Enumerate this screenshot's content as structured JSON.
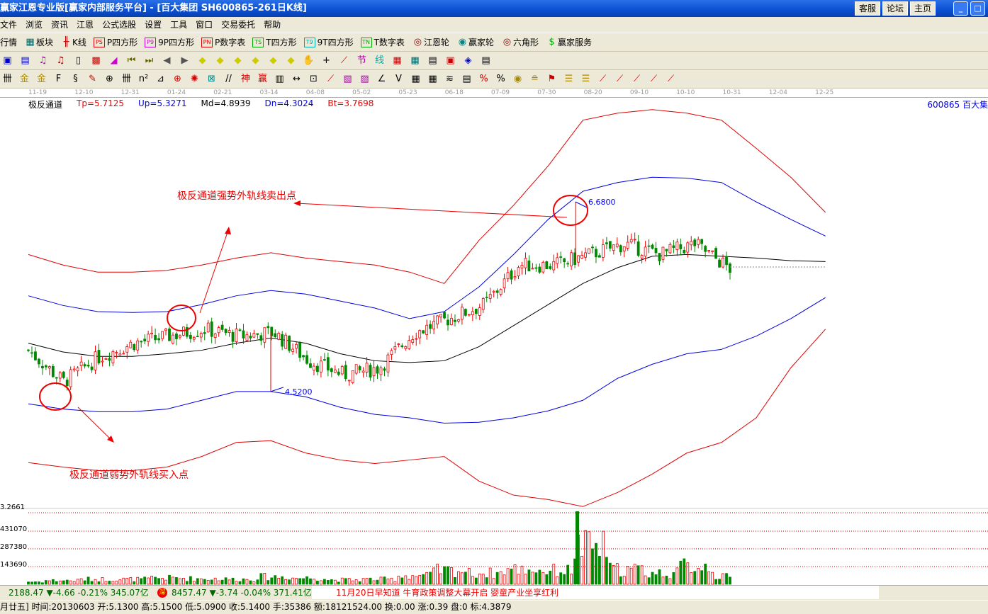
{
  "window": {
    "title": "赢家江恩专业版[赢家内部服务平台] - [百大集团   SH600865-261日K线]",
    "buttons": [
      "客服",
      "论坛",
      "主页"
    ]
  },
  "menu": [
    "文件",
    "浏览",
    "资讯",
    "江恩",
    "公式选股",
    "设置",
    "工具",
    "窗口",
    "交易委托",
    "帮助"
  ],
  "toolbar": [
    {
      "icon": "PS",
      "label": "P四方形",
      "color": "#d00"
    },
    {
      "icon": "P9",
      "label": "9P四方形",
      "color": "#c0c"
    },
    {
      "icon": "PN",
      "label": "P数字表",
      "color": "#d00"
    },
    {
      "icon": "TS",
      "label": "T四方形",
      "color": "#0a0"
    },
    {
      "icon": "T9",
      "label": "9T四方形",
      "color": "#0aa"
    },
    {
      "icon": "TN",
      "label": "T数字表",
      "color": "#0a0"
    }
  ],
  "toolbar_extra": {
    "quotes": "行情",
    "sectors": "板块",
    "kline": "K线",
    "gann_wheel": "江恩轮",
    "winner_wheel": "赢家轮",
    "hexagon": "六角形",
    "service": "赢家服务"
  },
  "date_axis": [
    "11-19",
    "12-10",
    "12-31",
    "01-24",
    "02-21",
    "03-14",
    "04-08",
    "05-02",
    "05-23",
    "06-18",
    "07-09",
    "07-30",
    "08-20",
    "09-10",
    "10-10",
    "10-31",
    "12-04",
    "12-25"
  ],
  "indicator": {
    "name": "极反通道",
    "tp": "Tp=5.7125",
    "up": "Up=5.3271",
    "md": "Md=4.8939",
    "dn": "Dn=4.3024",
    "bt": "Bt=3.7698",
    "stock": "600865  百大集"
  },
  "annotations": {
    "sell": "极反通道强势外轨线卖出点",
    "buy": "极反通道弱势外轨线买入点",
    "high": "6.6800",
    "low": "4.5200"
  },
  "volume_axis": [
    "3.2661",
    "431070",
    "287380",
    "143690"
  ],
  "chart_data": {
    "type": "candlestick",
    "series": [
      {
        "name": "Tp",
        "color": "#e00000",
        "values": [
          6.08,
          5.96,
          5.88,
          5.88,
          5.9,
          5.96,
          6.04,
          6.1,
          6.04,
          6.0,
          5.96,
          5.88,
          5.75,
          6.24,
          6.64,
          7.09,
          7.61,
          7.69,
          7.73,
          7.69,
          7.61,
          7.29,
          6.96,
          6.56
        ]
      },
      {
        "name": "Up",
        "color": "#0000e0",
        "values": [
          5.61,
          5.5,
          5.43,
          5.42,
          5.43,
          5.51,
          5.61,
          5.67,
          5.63,
          5.55,
          5.47,
          5.35,
          5.43,
          5.71,
          6.08,
          6.48,
          6.8,
          6.9,
          6.96,
          6.95,
          6.9,
          6.68,
          6.48,
          6.29
        ]
      },
      {
        "name": "Md",
        "color": "#000000",
        "values": [
          5.07,
          4.97,
          4.92,
          4.92,
          4.95,
          4.99,
          5.07,
          5.13,
          5.07,
          4.95,
          4.87,
          4.85,
          4.87,
          5.03,
          5.27,
          5.51,
          5.75,
          5.93,
          6.06,
          6.08,
          6.06,
          6.04,
          6.01,
          6.0
        ]
      },
      {
        "name": "Dn",
        "color": "#0000e0",
        "values": [
          4.38,
          4.32,
          4.29,
          4.29,
          4.32,
          4.42,
          4.52,
          4.52,
          4.46,
          4.34,
          4.26,
          4.22,
          4.16,
          4.17,
          4.22,
          4.3,
          4.42,
          4.67,
          4.83,
          4.95,
          5.0,
          5.15,
          5.35,
          5.59
        ]
      },
      {
        "name": "Bt",
        "color": "#e00000",
        "values": [
          3.71,
          3.66,
          3.62,
          3.62,
          3.66,
          3.78,
          3.94,
          3.96,
          3.82,
          3.74,
          3.7,
          3.74,
          3.78,
          3.5,
          3.34,
          3.29,
          3.21,
          3.37,
          3.58,
          3.82,
          3.94,
          4.22,
          4.79,
          5.23
        ]
      }
    ],
    "close": [
      4.99,
      4.63,
      4.91,
      5.07,
      5.15,
      5.23,
      5.15,
      5.19,
      4.87,
      4.71,
      4.79,
      5.19,
      5.35,
      5.51,
      5.96,
      5.96,
      6.08,
      6.2,
      6.08,
      6.2,
      5.92
    ],
    "volume": [
      20000,
      30000,
      40000,
      40000,
      50000,
      45000,
      40000,
      60000,
      50000,
      35000,
      40000,
      70000,
      110000,
      90000,
      120000,
      110000,
      300000,
      120000,
      90000,
      150000,
      60000
    ],
    "high_mark": 6.68,
    "low_mark": 4.52
  },
  "ticker": {
    "sh": "2188.47 ▼-4.66 -0.21% 345.07亿",
    "sz": "8457.47 ▼-3.74 -0.04% 371.41亿",
    "news": "11月20日早知道      牛育政策调整大幕开启  婴童产业坐享红利"
  },
  "status": "月廿五] 时间:20130603 开:5.1300 高:5.1500 低:5.0900 收:5.1400 手:35386 额:18121524.00 换:0.00 涨:0.39 盘:0 标:4.3879"
}
